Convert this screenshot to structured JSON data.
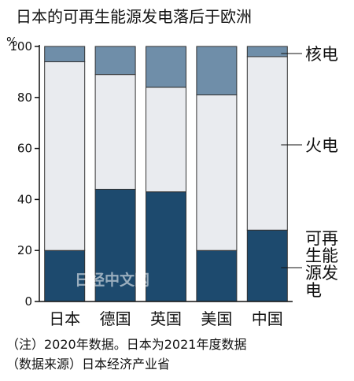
{
  "chart_data": {
    "type": "bar",
    "stacked": true,
    "title": "日本的可再生能源发电落后于欧洲",
    "ylabel": "%",
    "ylim": [
      0,
      100
    ],
    "yticks": [
      0,
      20,
      40,
      60,
      80,
      100
    ],
    "categories": [
      "日本",
      "德国",
      "英国",
      "美国",
      "中国"
    ],
    "series": [
      {
        "name": "可再生能源发电",
        "color": "#1d4a6e",
        "values": [
          20,
          44,
          43,
          20,
          28
        ]
      },
      {
        "name": "火电",
        "color": "#e9ebef",
        "values": [
          74,
          45,
          41,
          61,
          68
        ]
      },
      {
        "name": "核电",
        "color": "#6f8ea9",
        "values": [
          6,
          11,
          16,
          19,
          4
        ]
      }
    ],
    "notes": [
      "（注）2020年数据。日本为2021年度数据",
      "（数据来源）日本经济产业省"
    ],
    "watermark": "日经中文网"
  }
}
